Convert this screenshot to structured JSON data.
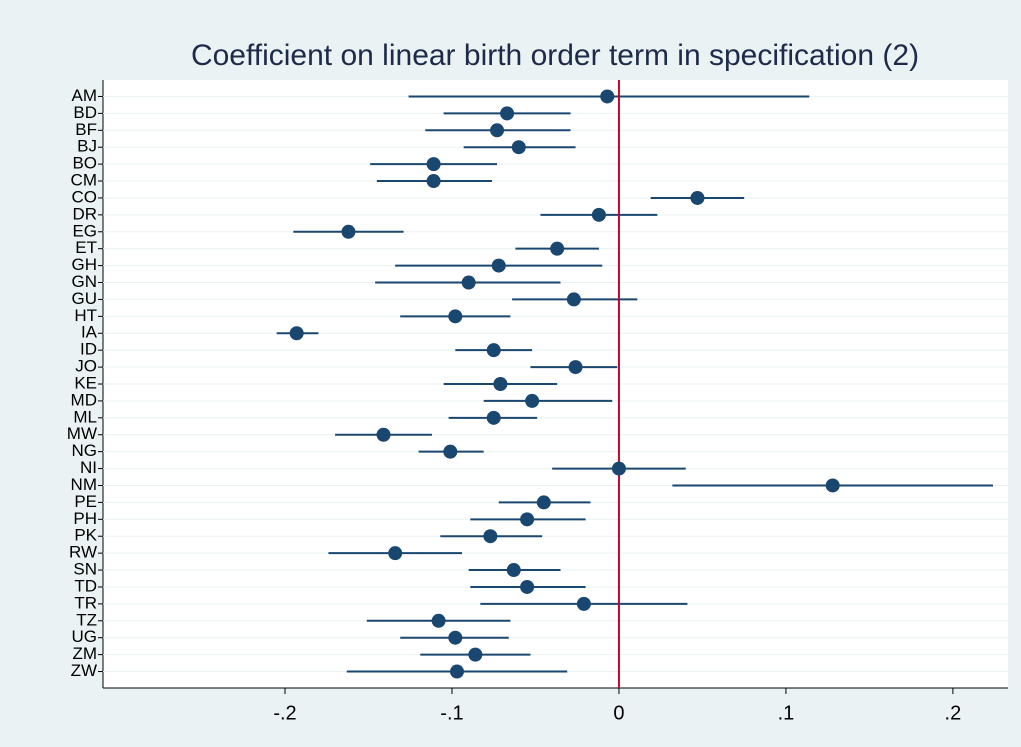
{
  "chart_data": {
    "type": "coefplot",
    "title": "Coefficient on linear birth order term in specification (2)",
    "categories": [
      "AM",
      "BD",
      "BF",
      "BJ",
      "BO",
      "CM",
      "CO",
      "DR",
      "EG",
      "ET",
      "GH",
      "GN",
      "GU",
      "HT",
      "IA",
      "ID",
      "JO",
      "KE",
      "MD",
      "ML",
      "MW",
      "NG",
      "NI",
      "NM",
      "PE",
      "PH",
      "PK",
      "RW",
      "SN",
      "TD",
      "TR",
      "TZ",
      "UG",
      "ZM",
      "ZW"
    ],
    "values": [
      -0.007,
      -0.067,
      -0.073,
      -0.06,
      -0.111,
      -0.111,
      0.047,
      -0.012,
      -0.162,
      -0.037,
      -0.072,
      -0.09,
      -0.027,
      -0.098,
      -0.193,
      -0.075,
      -0.026,
      -0.071,
      -0.052,
      -0.075,
      -0.141,
      -0.101,
      0.0,
      0.128,
      -0.045,
      -0.055,
      -0.077,
      -0.134,
      -0.063,
      -0.055,
      -0.021,
      -0.108,
      -0.098,
      -0.086,
      -0.097
    ],
    "lower": [
      -0.126,
      -0.105,
      -0.116,
      -0.093,
      -0.149,
      -0.145,
      0.019,
      -0.047,
      -0.195,
      -0.062,
      -0.134,
      -0.146,
      -0.064,
      -0.131,
      -0.205,
      -0.098,
      -0.053,
      -0.105,
      -0.081,
      -0.102,
      -0.17,
      -0.12,
      -0.04,
      0.032,
      -0.072,
      -0.089,
      -0.107,
      -0.174,
      -0.09,
      -0.089,
      -0.083,
      -0.151,
      -0.131,
      -0.119,
      -0.163
    ],
    "upper": [
      0.114,
      -0.029,
      -0.029,
      -0.026,
      -0.073,
      -0.076,
      0.075,
      0.023,
      -0.129,
      -0.012,
      -0.01,
      -0.035,
      0.011,
      -0.065,
      -0.18,
      -0.052,
      -0.001,
      -0.037,
      -0.004,
      -0.049,
      -0.112,
      -0.081,
      0.04,
      0.224,
      -0.017,
      -0.02,
      -0.046,
      -0.094,
      -0.035,
      -0.02,
      0.041,
      -0.065,
      -0.066,
      -0.053,
      -0.031
    ],
    "color": "#1a476f",
    "ref_line": 0,
    "ref_color": "#c10534",
    "xlim": [
      -0.309,
      0.233
    ],
    "xticks": [
      {
        "value": -0.2,
        "label": "-.2"
      },
      {
        "value": -0.1,
        "label": "-.1"
      },
      0,
      {
        "value": 0.1,
        "label": ".1"
      },
      {
        "value": 0.2,
        "label": ".2"
      }
    ],
    "grid": true
  }
}
